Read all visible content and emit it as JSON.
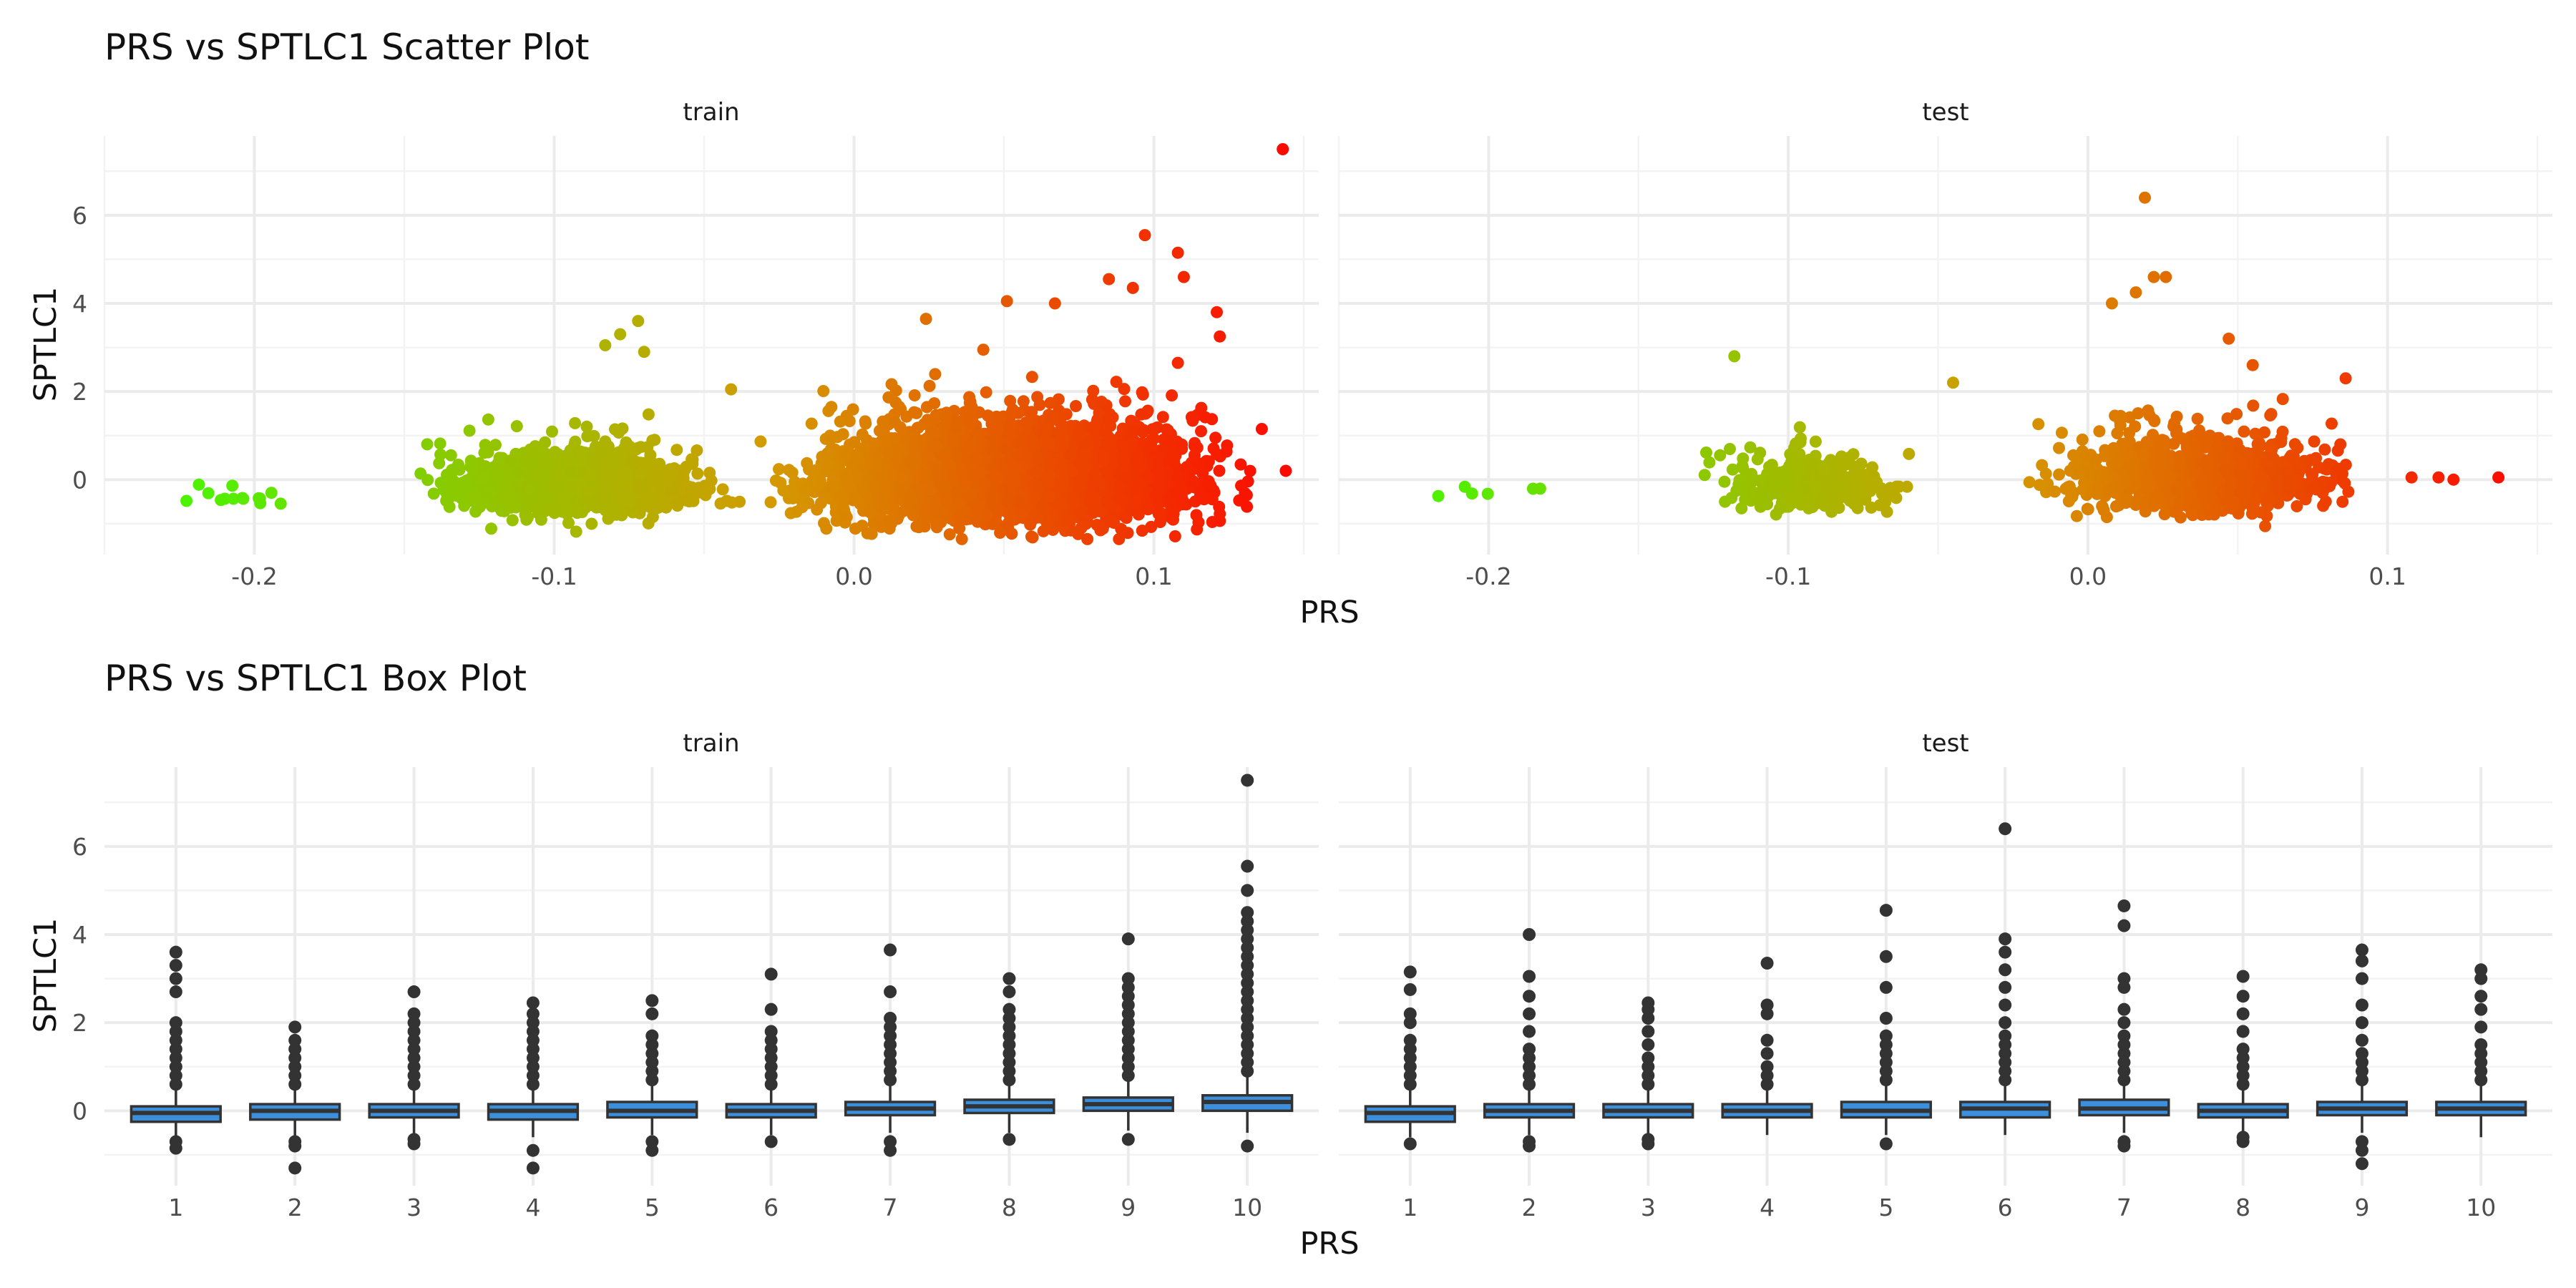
{
  "colors": {
    "background": "#ffffff",
    "grid": "#ebebeb",
    "scatter_low": "#39ff00",
    "scatter_mid": "#d49a00",
    "scatter_high": "#ff0000",
    "box_fill": "#3b8fdc",
    "box_line": "#333333"
  },
  "chart_data": [
    {
      "type": "scatter",
      "title": "PRS vs SPTLC1 Scatter Plot",
      "xlabel": "PRS",
      "ylabel": "SPTLC1",
      "xlim": [
        -0.25,
        0.155
      ],
      "ylim": [
        -1.7,
        7.8
      ],
      "x_ticks": [
        "-0.2",
        "-0.1",
        "0.0",
        "0.1"
      ],
      "y_ticks": [
        "0",
        "2",
        "4",
        "6"
      ],
      "color_scale": "PRS, green (low) to red (high)",
      "grid": true,
      "facets": [
        {
          "label": "train",
          "clusters": [
            {
              "x_range": [
                -0.232,
                -0.183
              ],
              "y_center": -0.35,
              "y_spread": 0.2,
              "approx_count": 14
            },
            {
              "x_range": [
                -0.15,
                -0.035
              ],
              "y_center": -0.15,
              "y_spread": 0.5,
              "approx_count": 1400
            },
            {
              "x_range": [
                -0.035,
                0.14
              ],
              "y_center": 0.0,
              "y_spread": 0.8,
              "approx_count": 3600
            }
          ],
          "outliers": [
            {
              "x": -0.078,
              "y": 3.3
            },
            {
              "x": -0.072,
              "y": 3.6
            },
            {
              "x": -0.083,
              "y": 3.05
            },
            {
              "x": -0.07,
              "y": 2.9
            },
            {
              "x": -0.041,
              "y": 2.05
            },
            {
              "x": 0.024,
              "y": 3.65
            },
            {
              "x": 0.051,
              "y": 4.05
            },
            {
              "x": 0.067,
              "y": 4.0
            },
            {
              "x": 0.085,
              "y": 4.55
            },
            {
              "x": 0.093,
              "y": 4.35
            },
            {
              "x": 0.097,
              "y": 5.55
            },
            {
              "x": 0.108,
              "y": 5.15
            },
            {
              "x": 0.11,
              "y": 4.6
            },
            {
              "x": 0.121,
              "y": 3.8
            },
            {
              "x": 0.122,
              "y": 3.25
            },
            {
              "x": 0.108,
              "y": 2.65
            },
            {
              "x": 0.136,
              "y": 1.15
            },
            {
              "x": 0.143,
              "y": 7.5
            },
            {
              "x": 0.144,
              "y": 0.2
            },
            {
              "x": 0.131,
              "y": -0.35
            }
          ]
        },
        {
          "label": "test",
          "clusters": [
            {
              "x_range": [
                -0.222,
                -0.178
              ],
              "y_center": -0.3,
              "y_spread": 0.1,
              "approx_count": 6
            },
            {
              "x_range": [
                -0.13,
                -0.055
              ],
              "y_center": -0.15,
              "y_spread": 0.45,
              "approx_count": 350
            },
            {
              "x_range": [
                -0.025,
                0.1
              ],
              "y_center": 0.0,
              "y_spread": 0.65,
              "approx_count": 900
            }
          ],
          "outliers": [
            {
              "x": -0.118,
              "y": 2.8
            },
            {
              "x": -0.045,
              "y": 2.2
            },
            {
              "x": 0.019,
              "y": 6.4
            },
            {
              "x": 0.022,
              "y": 4.6
            },
            {
              "x": 0.026,
              "y": 4.6
            },
            {
              "x": 0.008,
              "y": 4.0
            },
            {
              "x": 0.016,
              "y": 4.25
            },
            {
              "x": 0.047,
              "y": 3.2
            },
            {
              "x": 0.055,
              "y": 2.6
            },
            {
              "x": 0.086,
              "y": 2.3
            },
            {
              "x": 0.108,
              "y": 0.05
            },
            {
              "x": 0.117,
              "y": 0.05
            },
            {
              "x": 0.122,
              "y": 0.0
            },
            {
              "x": 0.137,
              "y": 0.05
            }
          ]
        }
      ]
    },
    {
      "type": "box",
      "title": "PRS vs SPTLC1 Box Plot",
      "xlabel": "PRS",
      "ylabel": "SPTLC1",
      "categories": [
        "1",
        "2",
        "3",
        "4",
        "5",
        "6",
        "7",
        "8",
        "9",
        "10"
      ],
      "y_ticks": [
        "0",
        "2",
        "4",
        "6"
      ],
      "ylim": [
        -1.7,
        7.8
      ],
      "grid": true,
      "facets": [
        {
          "label": "train",
          "boxes": [
            {
              "q1": -0.25,
              "median": -0.05,
              "q3": 0.1,
              "low": -0.6,
              "high": 0.5,
              "outliers_high": [
                0.6,
                0.8,
                1.0,
                1.2,
                1.4,
                1.6,
                1.8,
                2.0,
                2.7,
                3.0,
                3.3,
                3.6
              ],
              "outliers_low": [
                -0.7,
                -0.85
              ]
            },
            {
              "q1": -0.2,
              "median": 0.0,
              "q3": 0.15,
              "low": -0.6,
              "high": 0.55,
              "outliers_high": [
                0.6,
                0.8,
                1.0,
                1.2,
                1.4,
                1.6,
                1.9
              ],
              "outliers_low": [
                -0.7,
                -0.8,
                -1.3
              ]
            },
            {
              "q1": -0.15,
              "median": 0.0,
              "q3": 0.15,
              "low": -0.55,
              "high": 0.55,
              "outliers_high": [
                0.6,
                0.8,
                1.0,
                1.2,
                1.4,
                1.6,
                1.8,
                2.0,
                2.2,
                2.7
              ],
              "outliers_low": [
                -0.65,
                -0.75
              ]
            },
            {
              "q1": -0.2,
              "median": 0.0,
              "q3": 0.15,
              "low": -0.6,
              "high": 0.55,
              "outliers_high": [
                0.6,
                0.8,
                1.0,
                1.2,
                1.4,
                1.6,
                1.8,
                2.0,
                2.2,
                2.45
              ],
              "outliers_low": [
                -0.9,
                -1.3
              ]
            },
            {
              "q1": -0.15,
              "median": 0.0,
              "q3": 0.2,
              "low": -0.55,
              "high": 0.6,
              "outliers_high": [
                0.7,
                0.9,
                1.1,
                1.3,
                1.5,
                1.7,
                2.2,
                2.5
              ],
              "outliers_low": [
                -0.7,
                -0.9
              ]
            },
            {
              "q1": -0.15,
              "median": 0.0,
              "q3": 0.15,
              "low": -0.55,
              "high": 0.55,
              "outliers_high": [
                0.6,
                0.8,
                1.0,
                1.2,
                1.4,
                1.6,
                1.8,
                2.3,
                3.1
              ],
              "outliers_low": [
                -0.7
              ]
            },
            {
              "q1": -0.1,
              "median": 0.05,
              "q3": 0.2,
              "low": -0.5,
              "high": 0.6,
              "outliers_high": [
                0.7,
                0.9,
                1.1,
                1.3,
                1.5,
                1.7,
                1.9,
                2.1,
                2.7,
                3.65
              ],
              "outliers_low": [
                -0.7,
                -0.9
              ]
            },
            {
              "q1": -0.05,
              "median": 0.1,
              "q3": 0.25,
              "low": -0.5,
              "high": 0.65,
              "outliers_high": [
                0.7,
                0.9,
                1.1,
                1.3,
                1.5,
                1.7,
                1.9,
                2.1,
                2.3,
                2.7,
                3.0
              ],
              "outliers_low": [
                -0.65
              ]
            },
            {
              "q1": 0.0,
              "median": 0.15,
              "q3": 0.3,
              "low": -0.45,
              "high": 0.75,
              "outliers_high": [
                0.8,
                1.0,
                1.2,
                1.4,
                1.6,
                1.8,
                2.0,
                2.2,
                2.4,
                2.6,
                2.8,
                3.0,
                3.9
              ],
              "outliers_low": [
                -0.65
              ]
            },
            {
              "q1": 0.0,
              "median": 0.2,
              "q3": 0.35,
              "low": -0.5,
              "high": 0.8,
              "outliers_high": [
                0.9,
                1.1,
                1.3,
                1.5,
                1.7,
                1.9,
                2.1,
                2.3,
                2.5,
                2.7,
                2.9,
                3.1,
                3.3,
                3.5,
                3.7,
                3.9,
                4.1,
                4.3,
                4.5,
                5.0,
                5.55,
                7.5
              ],
              "outliers_low": [
                -0.8
              ]
            }
          ]
        },
        {
          "label": "test",
          "boxes": [
            {
              "q1": -0.25,
              "median": -0.05,
              "q3": 0.1,
              "low": -0.6,
              "high": 0.5,
              "outliers_high": [
                0.6,
                0.8,
                1.0,
                1.2,
                1.4,
                1.6,
                2.0,
                2.2,
                2.75,
                3.15
              ],
              "outliers_low": [
                -0.75
              ]
            },
            {
              "q1": -0.15,
              "median": 0.0,
              "q3": 0.15,
              "low": -0.55,
              "high": 0.55,
              "outliers_high": [
                0.6,
                0.8,
                1.0,
                1.2,
                1.4,
                1.8,
                2.2,
                2.6,
                3.05,
                4.0
              ],
              "outliers_low": [
                -0.7,
                -0.8
              ]
            },
            {
              "q1": -0.15,
              "median": 0.0,
              "q3": 0.15,
              "low": -0.55,
              "high": 0.55,
              "outliers_high": [
                0.6,
                0.8,
                1.0,
                1.2,
                1.5,
                1.8,
                2.1,
                2.3,
                2.45
              ],
              "outliers_low": [
                -0.65,
                -0.75
              ]
            },
            {
              "q1": -0.15,
              "median": 0.0,
              "q3": 0.15,
              "low": -0.55,
              "high": 0.55,
              "outliers_high": [
                0.6,
                0.8,
                1.0,
                1.3,
                1.6,
                2.2,
                2.4,
                3.35
              ],
              "outliers_low": []
            },
            {
              "q1": -0.15,
              "median": 0.0,
              "q3": 0.2,
              "low": -0.55,
              "high": 0.6,
              "outliers_high": [
                0.7,
                0.9,
                1.1,
                1.3,
                1.5,
                1.7,
                2.1,
                2.8,
                3.5,
                4.55
              ],
              "outliers_low": [
                -0.75
              ]
            },
            {
              "q1": -0.15,
              "median": 0.05,
              "q3": 0.2,
              "low": -0.55,
              "high": 0.6,
              "outliers_high": [
                0.7,
                0.9,
                1.1,
                1.3,
                1.5,
                1.7,
                2.0,
                2.4,
                2.8,
                3.2,
                3.6,
                3.9,
                6.4
              ],
              "outliers_low": []
            },
            {
              "q1": -0.1,
              "median": 0.05,
              "q3": 0.25,
              "low": -0.5,
              "high": 0.65,
              "outliers_high": [
                0.7,
                0.9,
                1.1,
                1.3,
                1.5,
                1.7,
                2.0,
                2.3,
                2.8,
                3.0,
                4.2,
                4.65
              ],
              "outliers_low": [
                -0.7,
                -0.8
              ]
            },
            {
              "q1": -0.15,
              "median": 0.0,
              "q3": 0.15,
              "low": -0.55,
              "high": 0.55,
              "outliers_high": [
                0.6,
                0.8,
                1.0,
                1.2,
                1.4,
                1.8,
                2.2,
                2.6,
                3.05
              ],
              "outliers_low": [
                -0.6,
                -0.7
              ]
            },
            {
              "q1": -0.1,
              "median": 0.05,
              "q3": 0.2,
              "low": -0.5,
              "high": 0.6,
              "outliers_high": [
                0.7,
                0.9,
                1.1,
                1.3,
                1.6,
                2.0,
                2.4,
                3.0,
                3.4,
                3.65
              ],
              "outliers_low": [
                -0.7,
                -0.9,
                -1.2
              ]
            },
            {
              "q1": -0.1,
              "median": 0.05,
              "q3": 0.2,
              "low": -0.6,
              "high": 0.6,
              "outliers_high": [
                0.7,
                0.9,
                1.1,
                1.3,
                1.5,
                1.9,
                2.3,
                2.6,
                3.0,
                3.2
              ],
              "outliers_low": []
            }
          ]
        }
      ]
    }
  ]
}
